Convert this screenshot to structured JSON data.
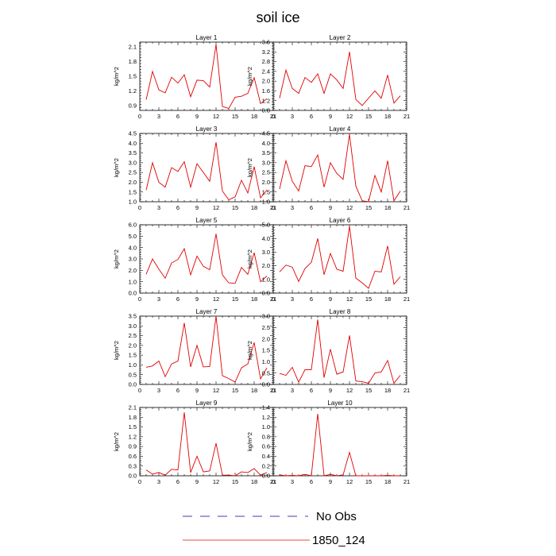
{
  "title": "soil ice",
  "legend": [
    {
      "label": "No Obs",
      "color": "#3b3bbd",
      "style": "dashed"
    },
    {
      "label": "1850_124",
      "color": "#e8474d",
      "style": "solid"
    }
  ],
  "line_color": "#e00000",
  "chart_data": [
    {
      "type": "line",
      "title": "Layer 1",
      "ylabel": "kg/m^2",
      "xlim": [
        0,
        21
      ],
      "xticks": [
        0,
        3,
        6,
        9,
        12,
        15,
        18,
        21
      ],
      "ylim": [
        0.8,
        2.2
      ],
      "yticks": [
        0.9,
        1.2,
        1.5,
        1.8,
        2.1
      ],
      "x": [
        1,
        2,
        3,
        4,
        5,
        6,
        7,
        8,
        9,
        10,
        11,
        12,
        13,
        14,
        15,
        16,
        17,
        18,
        19,
        20
      ],
      "series": [
        {
          "values": [
            1.02,
            1.6,
            1.22,
            1.16,
            1.48,
            1.36,
            1.53,
            1.08,
            1.42,
            1.41,
            1.28,
            2.15,
            0.88,
            0.84,
            1.07,
            1.09,
            1.15,
            1.47,
            0.94,
            1.04
          ]
        }
      ]
    },
    {
      "type": "line",
      "title": "Layer 2",
      "ylabel": "kg/m^2",
      "xlim": [
        0,
        21
      ],
      "xticks": [
        0,
        3,
        6,
        9,
        12,
        15,
        18,
        21
      ],
      "ylim": [
        0.8,
        3.6
      ],
      "yticks": [
        0.8,
        1.2,
        1.6,
        2.0,
        2.4,
        2.8,
        3.2,
        3.6
      ],
      "x": [
        1,
        2,
        3,
        4,
        5,
        6,
        7,
        8,
        9,
        10,
        11,
        12,
        13,
        14,
        15,
        16,
        17,
        18,
        19,
        20
      ],
      "series": [
        {
          "values": [
            1.3,
            2.45,
            1.7,
            1.5,
            2.15,
            1.95,
            2.3,
            1.5,
            2.3,
            2.05,
            1.7,
            3.2,
            1.25,
            1.0,
            1.3,
            1.6,
            1.3,
            2.25,
            1.1,
            1.4
          ]
        }
      ]
    },
    {
      "type": "line",
      "title": "Layer 3",
      "ylabel": "kg/m^2",
      "xlim": [
        0,
        21
      ],
      "xticks": [
        0,
        3,
        6,
        9,
        12,
        15,
        18,
        21
      ],
      "ylim": [
        1.0,
        4.5
      ],
      "yticks": [
        1.0,
        1.5,
        2.0,
        2.5,
        3.0,
        3.5,
        4.0,
        4.5
      ],
      "x": [
        1,
        2,
        3,
        4,
        5,
        6,
        7,
        8,
        9,
        10,
        11,
        12,
        13,
        14,
        15,
        16,
        17,
        18,
        19,
        20
      ],
      "series": [
        {
          "values": [
            1.6,
            3.0,
            2.0,
            1.75,
            2.75,
            2.55,
            3.05,
            1.75,
            2.95,
            2.5,
            2.05,
            4.05,
            1.55,
            1.1,
            1.25,
            2.1,
            1.45,
            2.8,
            1.2,
            1.6
          ]
        }
      ]
    },
    {
      "type": "line",
      "title": "Layer 4",
      "ylabel": "kg/m^2",
      "xlim": [
        0,
        21
      ],
      "xticks": [
        0,
        3,
        6,
        9,
        12,
        15,
        18,
        21
      ],
      "ylim": [
        1.0,
        4.5
      ],
      "yticks": [
        1.0,
        1.5,
        2.0,
        2.5,
        3.0,
        3.5,
        4.0,
        4.5
      ],
      "x": [
        1,
        2,
        3,
        4,
        5,
        6,
        7,
        8,
        9,
        10,
        11,
        12,
        13,
        14,
        15,
        16,
        17,
        18,
        19,
        20
      ],
      "series": [
        {
          "values": [
            1.65,
            3.1,
            2.05,
            1.55,
            2.85,
            2.8,
            3.4,
            1.75,
            3.0,
            2.45,
            2.15,
            4.45,
            1.8,
            1.05,
            1.0,
            2.35,
            1.5,
            3.1,
            1.05,
            1.55
          ]
        }
      ]
    },
    {
      "type": "line",
      "title": "Layer 5",
      "ylabel": "kg/m^2",
      "xlim": [
        0,
        21
      ],
      "xticks": [
        0,
        3,
        6,
        9,
        12,
        15,
        18,
        21
      ],
      "ylim": [
        0.0,
        6.0
      ],
      "yticks": [
        0.0,
        1.0,
        2.0,
        3.0,
        4.0,
        5.0,
        6.0
      ],
      "x": [
        1,
        2,
        3,
        4,
        5,
        6,
        7,
        8,
        9,
        10,
        11,
        12,
        13,
        14,
        15,
        16,
        17,
        18,
        19,
        20
      ],
      "series": [
        {
          "values": [
            1.65,
            3.0,
            2.1,
            1.3,
            2.65,
            2.95,
            3.9,
            1.6,
            3.25,
            2.35,
            2.05,
            5.2,
            1.6,
            0.9,
            0.85,
            2.25,
            1.65,
            3.55,
            1.0,
            1.5
          ]
        }
      ]
    },
    {
      "type": "line",
      "title": "Layer 6",
      "ylabel": "kg/m^2",
      "xlim": [
        0,
        21
      ],
      "xticks": [
        0,
        3,
        6,
        9,
        12,
        15,
        18,
        21
      ],
      "ylim": [
        0.0,
        5.0
      ],
      "yticks": [
        0.0,
        1.0,
        2.0,
        3.0,
        4.0,
        5.0
      ],
      "x": [
        1,
        2,
        3,
        4,
        5,
        6,
        7,
        8,
        9,
        10,
        11,
        12,
        13,
        14,
        15,
        16,
        17,
        18,
        19,
        20
      ],
      "series": [
        {
          "values": [
            1.55,
            2.05,
            1.9,
            0.85,
            1.8,
            2.25,
            4.0,
            1.35,
            2.9,
            1.75,
            1.6,
            4.9,
            1.1,
            0.75,
            0.35,
            1.6,
            1.55,
            3.45,
            0.65,
            1.2
          ]
        }
      ]
    },
    {
      "type": "line",
      "title": "Layer 7",
      "ylabel": "kg/m^2",
      "xlim": [
        0,
        21
      ],
      "xticks": [
        0,
        3,
        6,
        9,
        12,
        15,
        18,
        21
      ],
      "ylim": [
        0.0,
        3.5
      ],
      "yticks": [
        0.0,
        0.5,
        1.0,
        1.5,
        2.0,
        2.5,
        3.0,
        3.5
      ],
      "x": [
        1,
        2,
        3,
        4,
        5,
        6,
        7,
        8,
        9,
        10,
        11,
        12,
        13,
        14,
        15,
        16,
        17,
        18,
        19,
        20
      ],
      "series": [
        {
          "values": [
            0.88,
            0.95,
            1.2,
            0.4,
            1.05,
            1.2,
            3.15,
            0.9,
            2.0,
            0.9,
            0.92,
            3.5,
            0.45,
            0.3,
            0.12,
            0.85,
            1.05,
            2.15,
            0.28,
            0.85
          ]
        }
      ]
    },
    {
      "type": "line",
      "title": "Layer 8",
      "ylabel": "kg/m^2",
      "xlim": [
        0,
        21
      ],
      "xticks": [
        0,
        3,
        6,
        9,
        12,
        15,
        18,
        21
      ],
      "ylim": [
        0.0,
        3.0
      ],
      "yticks": [
        0.0,
        0.5,
        1.0,
        1.5,
        2.0,
        2.5,
        3.0
      ],
      "x": [
        1,
        2,
        3,
        4,
        5,
        6,
        7,
        8,
        9,
        10,
        11,
        12,
        13,
        14,
        15,
        16,
        17,
        18,
        19,
        20
      ],
      "series": [
        {
          "values": [
            0.48,
            0.4,
            0.75,
            0.1,
            0.65,
            0.65,
            2.85,
            0.3,
            1.55,
            0.45,
            0.55,
            2.15,
            0.15,
            0.12,
            0.05,
            0.5,
            0.55,
            1.05,
            0.05,
            0.4
          ]
        }
      ]
    },
    {
      "type": "line",
      "title": "Layer 9",
      "ylabel": "kg/m^2",
      "xlim": [
        0,
        21
      ],
      "xticks": [
        0,
        3,
        6,
        9,
        12,
        15,
        18,
        21
      ],
      "ylim": [
        0.0,
        2.1
      ],
      "yticks": [
        0.0,
        0.3,
        0.6,
        0.9,
        1.2,
        1.5,
        1.8,
        2.1
      ],
      "x": [
        1,
        2,
        3,
        4,
        5,
        6,
        7,
        8,
        9,
        10,
        11,
        12,
        13,
        14,
        15,
        16,
        17,
        18,
        19,
        20
      ],
      "series": [
        {
          "values": [
            0.18,
            0.05,
            0.1,
            0.02,
            0.2,
            0.18,
            1.95,
            0.1,
            0.6,
            0.12,
            0.15,
            1.0,
            0.02,
            0.02,
            0.0,
            0.12,
            0.1,
            0.22,
            0.02,
            0.1
          ]
        }
      ]
    },
    {
      "type": "line",
      "title": "Layer 10",
      "ylabel": "kg/m^2",
      "xlim": [
        0,
        21
      ],
      "xticks": [
        0,
        3,
        6,
        9,
        12,
        15,
        18,
        21
      ],
      "ylim": [
        0.0,
        1.4
      ],
      "yticks": [
        0.0,
        0.2,
        0.4,
        0.6,
        0.8,
        1.0,
        1.2,
        1.4
      ],
      "x": [
        1,
        2,
        3,
        4,
        5,
        6,
        7,
        8,
        9,
        10,
        11,
        12,
        13,
        14,
        15,
        16,
        17,
        18,
        19,
        20
      ],
      "series": [
        {
          "values": [
            0.02,
            0.0,
            0.01,
            0.0,
            0.03,
            0.0,
            1.27,
            0.0,
            0.03,
            0.0,
            0.02,
            0.48,
            0.0,
            0.0,
            0.0,
            0.0,
            0.0,
            0.01,
            0.0,
            0.0
          ]
        }
      ]
    }
  ]
}
